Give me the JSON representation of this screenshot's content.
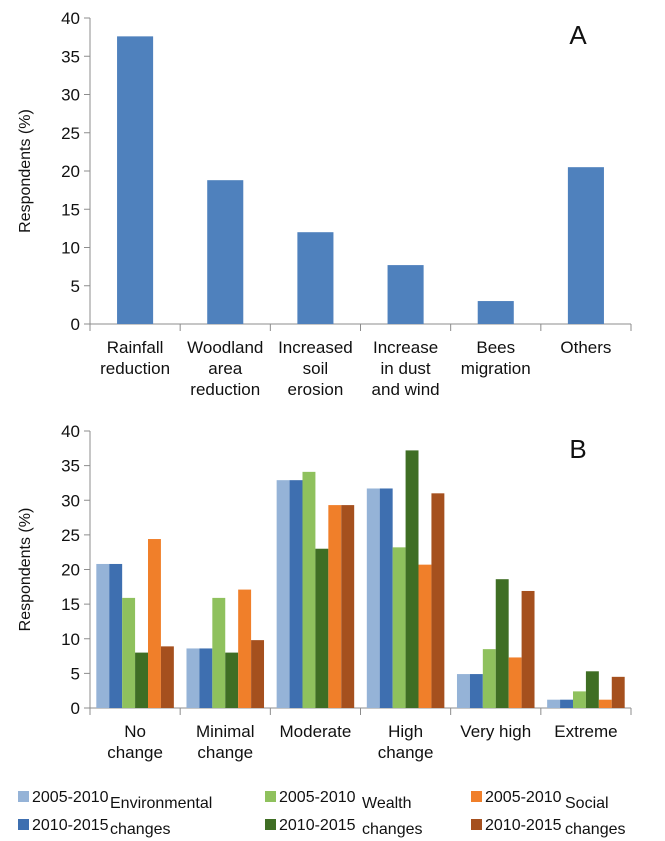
{
  "chart_data": [
    {
      "type": "bar",
      "panel_label": "A",
      "categories": [
        [
          "Rainfall",
          "reduction"
        ],
        [
          "Woodland",
          "area",
          "reduction"
        ],
        [
          "Increased",
          "soil",
          "erosion"
        ],
        [
          "Increase",
          "in dust",
          "and wind"
        ],
        [
          "Bees",
          "migration"
        ],
        [
          "Others"
        ]
      ],
      "values": [
        37.6,
        18.8,
        12.0,
        7.7,
        3.0,
        20.5
      ],
      "ylabel": "Respondents (%)",
      "ylim": [
        0,
        40
      ],
      "yticks": [
        "0",
        "5",
        "10",
        "15",
        "20",
        "25",
        "30",
        "35",
        "40"
      ],
      "grid": false,
      "colors": [
        "#4f81bd"
      ]
    },
    {
      "type": "bar",
      "panel_label": "B",
      "categories": [
        [
          "No",
          "change"
        ],
        [
          "Minimal",
          "change"
        ],
        [
          "Moderate"
        ],
        [
          "High",
          "change"
        ],
        [
          "Very high"
        ],
        [
          "Extreme"
        ]
      ],
      "series": [
        {
          "period": "2005-2010",
          "group": "Environmental changes",
          "color": "#95b3d7",
          "values": [
            20.8,
            8.6,
            32.9,
            31.7,
            4.9,
            1.2
          ]
        },
        {
          "period": "2010-2015",
          "group": "Environmental changes",
          "color": "#3e6fb0",
          "values": [
            20.8,
            8.6,
            32.9,
            31.7,
            4.9,
            1.2
          ]
        },
        {
          "period": "2005-2010",
          "group": "Wealth changes",
          "color": "#8fc15d",
          "values": [
            15.9,
            15.9,
            34.1,
            23.2,
            8.5,
            2.4
          ]
        },
        {
          "period": "2010-2015",
          "group": "Wealth changes",
          "color": "#3f6e24",
          "values": [
            8.0,
            8.0,
            23.0,
            37.2,
            18.6,
            5.3
          ]
        },
        {
          "period": "2005-2010",
          "group": "Social changes",
          "color": "#f07f2a",
          "values": [
            24.4,
            17.1,
            29.3,
            20.7,
            7.3,
            1.2
          ]
        },
        {
          "period": "2010-2015",
          "group": "Social changes",
          "color": "#a5501e",
          "values": [
            8.9,
            9.8,
            29.3,
            31.0,
            16.9,
            4.5
          ]
        }
      ],
      "ylabel": "Respondents (%)",
      "ylim": [
        0,
        40
      ],
      "yticks": [
        "0",
        "5",
        "10",
        "15",
        "20",
        "25",
        "30",
        "35",
        "40"
      ],
      "grid": false,
      "legend": {
        "placement": "bottom",
        "items": [
          {
            "label": "2005-2010",
            "color": "#95b3d7"
          },
          {
            "label": "2010-2015",
            "color": "#3e6fb0"
          },
          {
            "label": "2005-2010",
            "color": "#8fc15d"
          },
          {
            "label": "2010-2015",
            "color": "#3f6e24"
          },
          {
            "label": "2005-2010",
            "color": "#f07f2a"
          },
          {
            "label": "2010-2015",
            "color": "#a5501e"
          }
        ],
        "group_labels": [
          [
            "Environmental",
            "changes"
          ],
          [
            "Wealth",
            "changes"
          ],
          [
            "Social",
            "changes"
          ]
        ]
      }
    }
  ]
}
